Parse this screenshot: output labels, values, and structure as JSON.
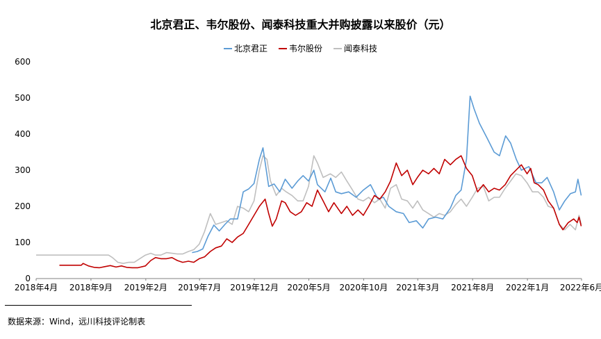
{
  "chart_data": {
    "type": "line",
    "title": "北京君正、韦尔股份、闻泰科技重大并购披露以来股价（元）",
    "xlabel": "",
    "ylabel": "",
    "ylim": [
      0,
      600
    ],
    "yticks": [
      0,
      100,
      200,
      300,
      400,
      500,
      600
    ],
    "xlim": [
      "2018-04-01",
      "2022-06-01"
    ],
    "xticks": [
      "2018年4月",
      "2018年9月",
      "2019年2月",
      "2019年7月",
      "2019年12月",
      "2020年5月",
      "2020年10月",
      "2021年3月",
      "2021年8月",
      "2022年1月",
      "2022年6月"
    ],
    "grid": false,
    "legend_position": "top",
    "series": [
      {
        "name": "北京君正",
        "color": "#5b9bd5",
        "points": [
          [
            "2019-06-10",
            72
          ],
          [
            "2019-06-25",
            75
          ],
          [
            "2019-07-10",
            82
          ],
          [
            "2019-07-25",
            118
          ],
          [
            "2019-08-10",
            148
          ],
          [
            "2019-08-25",
            132
          ],
          [
            "2019-09-10",
            150
          ],
          [
            "2019-09-25",
            165
          ],
          [
            "2019-10-15",
            165
          ],
          [
            "2019-10-31",
            240
          ],
          [
            "2019-11-15",
            248
          ],
          [
            "2019-11-30",
            263
          ],
          [
            "2019-12-15",
            330
          ],
          [
            "2019-12-25",
            362
          ],
          [
            "2020-01-10",
            255
          ],
          [
            "2020-01-25",
            262
          ],
          [
            "2020-02-10",
            240
          ],
          [
            "2020-02-25",
            275
          ],
          [
            "2020-03-15",
            250
          ],
          [
            "2020-03-31",
            270
          ],
          [
            "2020-04-15",
            285
          ],
          [
            "2020-04-30",
            270
          ],
          [
            "2020-05-15",
            300
          ],
          [
            "2020-05-25",
            260
          ],
          [
            "2020-06-15",
            240
          ],
          [
            "2020-07-01",
            278
          ],
          [
            "2020-07-15",
            240
          ],
          [
            "2020-07-31",
            235
          ],
          [
            "2020-08-20",
            240
          ],
          [
            "2020-09-10",
            225
          ],
          [
            "2020-09-30",
            245
          ],
          [
            "2020-10-20",
            260
          ],
          [
            "2020-11-10",
            220
          ],
          [
            "2020-11-25",
            225
          ],
          [
            "2020-12-10",
            200
          ],
          [
            "2020-12-31",
            185
          ],
          [
            "2021-01-20",
            180
          ],
          [
            "2021-02-05",
            155
          ],
          [
            "2021-02-25",
            160
          ],
          [
            "2021-03-15",
            140
          ],
          [
            "2021-03-31",
            165
          ],
          [
            "2021-04-20",
            170
          ],
          [
            "2021-05-10",
            165
          ],
          [
            "2021-05-31",
            195
          ],
          [
            "2021-06-15",
            230
          ],
          [
            "2021-06-30",
            245
          ],
          [
            "2021-07-15",
            330
          ],
          [
            "2021-07-25",
            505
          ],
          [
            "2021-08-05",
            470
          ],
          [
            "2021-08-20",
            430
          ],
          [
            "2021-09-10",
            390
          ],
          [
            "2021-09-30",
            350
          ],
          [
            "2021-10-15",
            340
          ],
          [
            "2021-11-01",
            395
          ],
          [
            "2021-11-15",
            375
          ],
          [
            "2021-12-01",
            330
          ],
          [
            "2021-12-15",
            300
          ],
          [
            "2022-01-05",
            310
          ],
          [
            "2022-01-25",
            265
          ],
          [
            "2022-02-10",
            265
          ],
          [
            "2022-02-25",
            280
          ],
          [
            "2022-03-15",
            240
          ],
          [
            "2022-03-31",
            190
          ],
          [
            "2022-04-15",
            215
          ],
          [
            "2022-05-01",
            235
          ],
          [
            "2022-05-15",
            240
          ],
          [
            "2022-05-22",
            275
          ],
          [
            "2022-05-31",
            230
          ]
        ]
      },
      {
        "name": "韦尔股份",
        "color": "#c00000",
        "points": [
          [
            "2018-06-05",
            37
          ],
          [
            "2018-08-05",
            37
          ],
          [
            "2018-08-10",
            42
          ],
          [
            "2018-08-25",
            35
          ],
          [
            "2018-09-10",
            31
          ],
          [
            "2018-09-25",
            30
          ],
          [
            "2018-10-10",
            33
          ],
          [
            "2018-10-25",
            36
          ],
          [
            "2018-11-10",
            32
          ],
          [
            "2018-11-25",
            35
          ],
          [
            "2018-12-10",
            31
          ],
          [
            "2018-12-25",
            30
          ],
          [
            "2019-01-10",
            30
          ],
          [
            "2019-01-31",
            35
          ],
          [
            "2019-02-15",
            50
          ],
          [
            "2019-02-28",
            58
          ],
          [
            "2019-03-15",
            55
          ],
          [
            "2019-03-31",
            55
          ],
          [
            "2019-04-15",
            58
          ],
          [
            "2019-04-30",
            50
          ],
          [
            "2019-05-15",
            45
          ],
          [
            "2019-05-31",
            48
          ],
          [
            "2019-06-15",
            45
          ],
          [
            "2019-06-30",
            55
          ],
          [
            "2019-07-15",
            60
          ],
          [
            "2019-07-31",
            75
          ],
          [
            "2019-08-15",
            85
          ],
          [
            "2019-08-31",
            90
          ],
          [
            "2019-09-15",
            110
          ],
          [
            "2019-09-30",
            100
          ],
          [
            "2019-10-15",
            115
          ],
          [
            "2019-10-31",
            125
          ],
          [
            "2019-11-15",
            150
          ],
          [
            "2019-11-30",
            175
          ],
          [
            "2019-12-15",
            200
          ],
          [
            "2019-12-31",
            220
          ],
          [
            "2020-01-10",
            180
          ],
          [
            "2020-01-20",
            145
          ],
          [
            "2020-01-31",
            165
          ],
          [
            "2020-02-15",
            215
          ],
          [
            "2020-02-25",
            210
          ],
          [
            "2020-03-10",
            185
          ],
          [
            "2020-03-25",
            175
          ],
          [
            "2020-04-10",
            185
          ],
          [
            "2020-04-25",
            210
          ],
          [
            "2020-05-10",
            200
          ],
          [
            "2020-05-25",
            245
          ],
          [
            "2020-06-10",
            215
          ],
          [
            "2020-06-25",
            185
          ],
          [
            "2020-07-10",
            210
          ],
          [
            "2020-07-31",
            180
          ],
          [
            "2020-08-15",
            200
          ],
          [
            "2020-08-31",
            175
          ],
          [
            "2020-09-15",
            190
          ],
          [
            "2020-09-30",
            175
          ],
          [
            "2020-10-15",
            200
          ],
          [
            "2020-10-31",
            230
          ],
          [
            "2020-11-15",
            220
          ],
          [
            "2020-11-30",
            240
          ],
          [
            "2020-12-15",
            270
          ],
          [
            "2020-12-31",
            320
          ],
          [
            "2021-01-15",
            285
          ],
          [
            "2021-01-31",
            300
          ],
          [
            "2021-02-15",
            260
          ],
          [
            "2021-02-28",
            280
          ],
          [
            "2021-03-15",
            300
          ],
          [
            "2021-03-31",
            290
          ],
          [
            "2021-04-15",
            305
          ],
          [
            "2021-04-30",
            290
          ],
          [
            "2021-05-15",
            330
          ],
          [
            "2021-05-31",
            315
          ],
          [
            "2021-06-15",
            330
          ],
          [
            "2021-06-30",
            340
          ],
          [
            "2021-07-15",
            305
          ],
          [
            "2021-07-31",
            285
          ],
          [
            "2021-08-15",
            240
          ],
          [
            "2021-08-31",
            260
          ],
          [
            "2021-09-15",
            240
          ],
          [
            "2021-09-30",
            250
          ],
          [
            "2021-10-15",
            245
          ],
          [
            "2021-10-31",
            260
          ],
          [
            "2021-11-15",
            285
          ],
          [
            "2021-11-30",
            300
          ],
          [
            "2021-12-15",
            315
          ],
          [
            "2021-12-31",
            290
          ],
          [
            "2022-01-10",
            305
          ],
          [
            "2022-01-20",
            265
          ],
          [
            "2022-01-31",
            260
          ],
          [
            "2022-02-15",
            245
          ],
          [
            "2022-02-28",
            215
          ],
          [
            "2022-03-15",
            195
          ],
          [
            "2022-03-31",
            150
          ],
          [
            "2022-04-10",
            135
          ],
          [
            "2022-04-25",
            155
          ],
          [
            "2022-05-10",
            165
          ],
          [
            "2022-05-20",
            155
          ],
          [
            "2022-05-25",
            170
          ],
          [
            "2022-05-31",
            145
          ]
        ]
      },
      {
        "name": "闻泰科技",
        "color": "#bfbfbf",
        "points": [
          [
            "2018-04-01",
            65
          ],
          [
            "2018-10-20",
            65
          ],
          [
            "2018-10-31",
            58
          ],
          [
            "2018-11-15",
            45
          ],
          [
            "2018-11-30",
            42
          ],
          [
            "2018-12-15",
            45
          ],
          [
            "2018-12-31",
            45
          ],
          [
            "2019-01-15",
            55
          ],
          [
            "2019-01-31",
            65
          ],
          [
            "2019-02-15",
            70
          ],
          [
            "2019-02-28",
            65
          ],
          [
            "2019-03-15",
            65
          ],
          [
            "2019-03-31",
            72
          ],
          [
            "2019-04-15",
            70
          ],
          [
            "2019-04-30",
            68
          ],
          [
            "2019-05-15",
            68
          ],
          [
            "2019-05-31",
            75
          ],
          [
            "2019-06-15",
            80
          ],
          [
            "2019-06-30",
            95
          ],
          [
            "2019-07-15",
            130
          ],
          [
            "2019-07-31",
            180
          ],
          [
            "2019-08-15",
            150
          ],
          [
            "2019-08-31",
            155
          ],
          [
            "2019-09-15",
            160
          ],
          [
            "2019-09-30",
            150
          ],
          [
            "2019-10-15",
            200
          ],
          [
            "2019-10-31",
            195
          ],
          [
            "2019-11-15",
            185
          ],
          [
            "2019-11-30",
            215
          ],
          [
            "2019-12-15",
            300
          ],
          [
            "2019-12-25",
            340
          ],
          [
            "2020-01-05",
            330
          ],
          [
            "2020-01-15",
            270
          ],
          [
            "2020-01-31",
            230
          ],
          [
            "2020-02-15",
            250
          ],
          [
            "2020-02-28",
            240
          ],
          [
            "2020-03-15",
            230
          ],
          [
            "2020-03-31",
            215
          ],
          [
            "2020-04-15",
            215
          ],
          [
            "2020-04-30",
            255
          ],
          [
            "2020-05-15",
            340
          ],
          [
            "2020-05-25",
            320
          ],
          [
            "2020-06-10",
            280
          ],
          [
            "2020-06-30",
            290
          ],
          [
            "2020-07-15",
            280
          ],
          [
            "2020-07-31",
            295
          ],
          [
            "2020-08-15",
            270
          ],
          [
            "2020-08-31",
            245
          ],
          [
            "2020-09-15",
            220
          ],
          [
            "2020-09-30",
            215
          ],
          [
            "2020-10-15",
            225
          ],
          [
            "2020-10-31",
            210
          ],
          [
            "2020-11-15",
            220
          ],
          [
            "2020-11-30",
            195
          ],
          [
            "2020-12-15",
            250
          ],
          [
            "2020-12-31",
            260
          ],
          [
            "2021-01-15",
            220
          ],
          [
            "2021-01-31",
            215
          ],
          [
            "2021-02-15",
            195
          ],
          [
            "2021-02-28",
            215
          ],
          [
            "2021-03-15",
            190
          ],
          [
            "2021-03-31",
            180
          ],
          [
            "2021-04-15",
            170
          ],
          [
            "2021-04-30",
            180
          ],
          [
            "2021-05-15",
            175
          ],
          [
            "2021-05-31",
            185
          ],
          [
            "2021-06-15",
            205
          ],
          [
            "2021-06-30",
            220
          ],
          [
            "2021-07-15",
            200
          ],
          [
            "2021-07-31",
            225
          ],
          [
            "2021-08-15",
            250
          ],
          [
            "2021-08-31",
            255
          ],
          [
            "2021-09-15",
            215
          ],
          [
            "2021-09-30",
            225
          ],
          [
            "2021-10-15",
            225
          ],
          [
            "2021-10-31",
            250
          ],
          [
            "2021-11-15",
            270
          ],
          [
            "2021-11-30",
            290
          ],
          [
            "2021-12-15",
            285
          ],
          [
            "2021-12-31",
            265
          ],
          [
            "2022-01-15",
            240
          ],
          [
            "2022-01-31",
            240
          ],
          [
            "2022-02-15",
            225
          ],
          [
            "2022-02-28",
            200
          ],
          [
            "2022-03-15",
            195
          ],
          [
            "2022-03-31",
            150
          ],
          [
            "2022-04-15",
            135
          ],
          [
            "2022-04-30",
            150
          ],
          [
            "2022-05-15",
            135
          ],
          [
            "2022-05-25",
            175
          ],
          [
            "2022-05-31",
            150
          ]
        ]
      }
    ]
  },
  "source": "数据来源：Wind，远川科技评论制表"
}
